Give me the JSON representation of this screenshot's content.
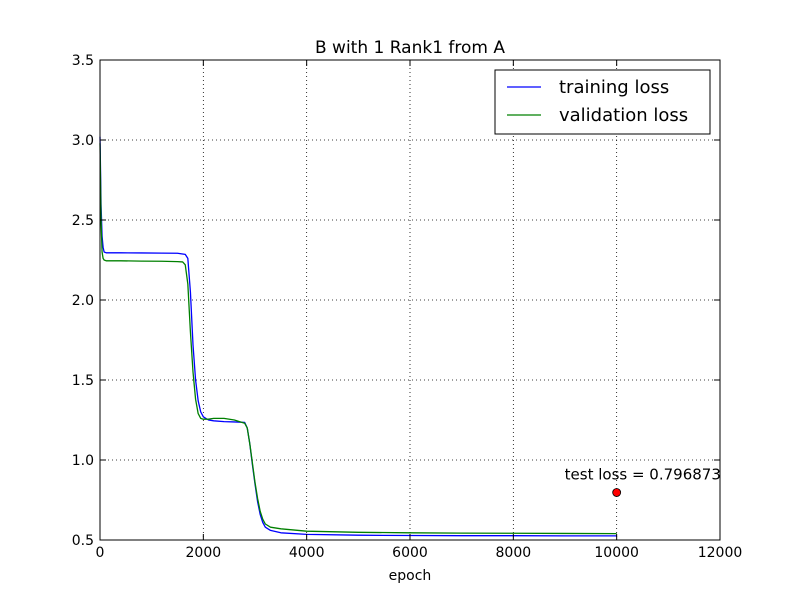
{
  "chart_data": {
    "type": "line",
    "title": "B with 1 Rank1 from A",
    "xlabel": "epoch",
    "ylabel": "",
    "xlim": [
      0,
      12000
    ],
    "ylim": [
      0.5,
      3.5
    ],
    "xticks": [
      "0",
      "2000",
      "4000",
      "6000",
      "8000",
      "10000",
      "12000"
    ],
    "yticks": [
      "0.5",
      "1.0",
      "1.5",
      "2.0",
      "2.5",
      "3.0",
      "3.5"
    ],
    "grid": true,
    "legend_position": "top-right",
    "series": [
      {
        "name": "training loss",
        "color": "#0000ff",
        "x": [
          0,
          20,
          40,
          60,
          80,
          120,
          200,
          400,
          800,
          1200,
          1500,
          1650,
          1700,
          1750,
          1800,
          1850,
          1900,
          1950,
          2000,
          2100,
          2200,
          2400,
          2600,
          2800,
          2850,
          2900,
          2950,
          3000,
          3050,
          3100,
          3150,
          3200,
          3300,
          3500,
          4000,
          5000,
          6000,
          7000,
          8000,
          9000,
          10000
        ],
        "y": [
          3.02,
          2.6,
          2.4,
          2.33,
          2.3,
          2.295,
          2.295,
          2.295,
          2.294,
          2.293,
          2.292,
          2.285,
          2.26,
          2.05,
          1.72,
          1.5,
          1.37,
          1.3,
          1.27,
          1.25,
          1.245,
          1.24,
          1.238,
          1.235,
          1.2,
          1.1,
          0.97,
          0.85,
          0.74,
          0.66,
          0.61,
          0.58,
          0.56,
          0.545,
          0.535,
          0.53,
          0.528,
          0.527,
          0.527,
          0.526,
          0.526
        ]
      },
      {
        "name": "validation loss",
        "color": "#008000",
        "x": [
          0,
          20,
          40,
          60,
          80,
          120,
          200,
          400,
          800,
          1200,
          1500,
          1600,
          1650,
          1700,
          1750,
          1800,
          1850,
          1900,
          1950,
          2000,
          2100,
          2200,
          2400,
          2600,
          2800,
          2850,
          2900,
          2950,
          3000,
          3050,
          3100,
          3150,
          3200,
          3300,
          3500,
          4000,
          5000,
          6000,
          7000,
          8000,
          9000,
          10000
        ],
        "y": [
          2.98,
          2.5,
          2.3,
          2.26,
          2.25,
          2.245,
          2.245,
          2.245,
          2.243,
          2.242,
          2.24,
          2.238,
          2.22,
          2.1,
          1.8,
          1.55,
          1.38,
          1.29,
          1.26,
          1.255,
          1.255,
          1.26,
          1.26,
          1.25,
          1.23,
          1.2,
          1.1,
          0.98,
          0.86,
          0.76,
          0.68,
          0.63,
          0.6,
          0.58,
          0.57,
          0.555,
          0.548,
          0.545,
          0.543,
          0.542,
          0.541,
          0.54
        ]
      }
    ],
    "annotations": [
      {
        "text": "test loss = 0.796873",
        "x": 10000,
        "y": 0.796873,
        "marker_color": "#ff0000"
      }
    ]
  }
}
